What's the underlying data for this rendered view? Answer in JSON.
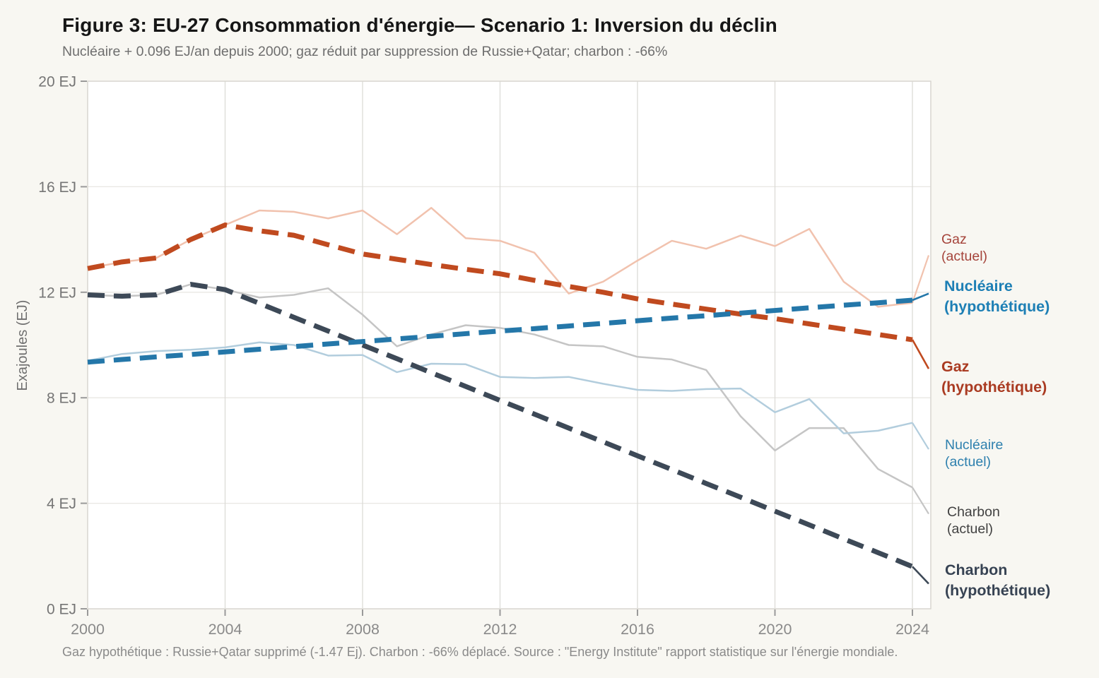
{
  "header": {
    "title": "Figure 3: EU-27 Consommation d'énergie— Scenario 1: Inversion du déclin",
    "subtitle": "Nucléaire + 0.096 EJ/an depuis 2000; gaz réduit par suppression de Russie+Qatar; charbon : -66%"
  },
  "footer": {
    "text": "Gaz hypothétique : Russie+Qatar supprimé (-1.47 Ej). Charbon : -66% déplacé. Source : \"Energy Institute\" rapport statistique sur l'énergie mondiale."
  },
  "chart_data": {
    "type": "line",
    "title": "Figure 3: EU-27 Consommation d'énergie— Scenario 1: Inversion du déclin",
    "subtitle": "Nucléaire + 0.096 EJ/an depuis 2000; gaz réduit par suppression de Russie+Qatar; charbon : -66%",
    "ylabel": "Exajoules (EJ)",
    "xlabel": "",
    "ylim": [
      0,
      20
    ],
    "xlim": [
      2000,
      2024.5
    ],
    "grid": true,
    "legend_position": "right-margin-labels",
    "y_ticks": [
      0,
      4,
      8,
      12,
      16,
      20
    ],
    "y_tick_suffix": " EJ",
    "x_ticks": [
      2000,
      2004,
      2008,
      2012,
      2016,
      2020,
      2024
    ],
    "years": [
      2000,
      2001,
      2002,
      2003,
      2004,
      2005,
      2006,
      2007,
      2008,
      2009,
      2010,
      2011,
      2012,
      2013,
      2014,
      2015,
      2016,
      2017,
      2018,
      2019,
      2020,
      2021,
      2022,
      2023,
      2024
    ],
    "series": [
      {
        "name": "Gaz (actuel)",
        "key": "gaz-actuel",
        "style": "solid",
        "width": 2.5,
        "color": "#f1c2ae",
        "values": [
          12.9,
          13.15,
          13.3,
          14.0,
          14.55,
          15.1,
          15.05,
          14.8,
          15.1,
          14.2,
          15.2,
          14.05,
          13.95,
          13.5,
          11.95,
          12.4,
          13.2,
          13.95,
          13.65,
          14.15,
          13.75,
          14.4,
          12.4,
          11.45,
          11.6
        ],
        "leader_to": 13.4,
        "label": {
          "line1": "Gaz",
          "line2": "(actuel)",
          "color": "#a5443b"
        }
      },
      {
        "name": "Charbon (actuel)",
        "key": "charbon-actuel",
        "style": "solid",
        "width": 2.5,
        "color": "#c5c5c5",
        "values": [
          11.9,
          11.85,
          11.9,
          12.3,
          12.1,
          11.8,
          11.9,
          12.15,
          11.15,
          9.95,
          10.4,
          10.75,
          10.65,
          10.4,
          10.0,
          9.95,
          9.55,
          9.45,
          9.05,
          7.3,
          6.0,
          6.85,
          6.85,
          5.3,
          4.6
        ],
        "leader_to": 3.6,
        "label": {
          "line1": "Charbon",
          "line2": "(actuel)",
          "color": "#414141"
        }
      },
      {
        "name": "Nucléaire (actuel)",
        "key": "nucleaire-actuel",
        "style": "solid",
        "width": 2.5,
        "color": "#b2cddd",
        "values": [
          9.4,
          9.66,
          9.77,
          9.82,
          9.91,
          10.1,
          10.0,
          9.6,
          9.62,
          8.97,
          9.29,
          9.27,
          8.79,
          8.75,
          8.79,
          8.53,
          8.3,
          8.26,
          8.33,
          8.35,
          7.45,
          7.95,
          6.65,
          6.75,
          7.05
        ],
        "leader_to": 6.05,
        "label": {
          "line1": "Nucléaire",
          "line2": "(actuel)",
          "color": "#2e80ae"
        }
      },
      {
        "name": "Gaz (hypothétique)",
        "key": "gaz-hyp",
        "style": "dashed",
        "width": 7,
        "color": "#c04a1f",
        "values": [
          12.9,
          13.15,
          13.3,
          14.0,
          14.55,
          14.33,
          14.16,
          13.8,
          13.45,
          13.25,
          13.05,
          12.87,
          12.7,
          12.45,
          12.22,
          12.0,
          11.75,
          11.55,
          11.36,
          11.17,
          11.0,
          10.8,
          10.6,
          10.4,
          10.2
        ],
        "leader_to": 9.1,
        "label": {
          "line1": "Gaz",
          "line2": "(hypothétique)",
          "color": "#aa3b22"
        }
      },
      {
        "name": "Charbon (hypothétique)",
        "key": "charbon-hyp",
        "style": "dashed",
        "width": 7,
        "color": "#3d4957",
        "values": [
          11.9,
          11.85,
          11.9,
          12.3,
          12.1,
          11.58,
          11.05,
          10.53,
          10.0,
          9.48,
          8.95,
          8.43,
          7.9,
          7.38,
          6.85,
          6.33,
          5.8,
          5.28,
          4.75,
          4.23,
          3.7,
          3.18,
          2.65,
          2.13,
          1.6
        ],
        "leader_to": 0.95,
        "label": {
          "line1": "Charbon",
          "line2": "(hypothétique)",
          "color": "#374353"
        }
      },
      {
        "name": "Nucléaire (hypothétique)",
        "key": "nucleaire-hyp",
        "style": "dashed",
        "width": 7,
        "color": "#2477a9",
        "values": [
          9.35,
          9.45,
          9.55,
          9.64,
          9.74,
          9.84,
          9.94,
          10.04,
          10.13,
          10.23,
          10.33,
          10.43,
          10.53,
          10.62,
          10.72,
          10.82,
          10.92,
          11.02,
          11.11,
          11.21,
          11.31,
          11.41,
          11.51,
          11.6,
          11.7
        ],
        "leader_to": 11.95,
        "label": {
          "line1": "Nucléaire",
          "line2": "(hypothétique)",
          "color": "#1d7fb5"
        }
      }
    ]
  }
}
